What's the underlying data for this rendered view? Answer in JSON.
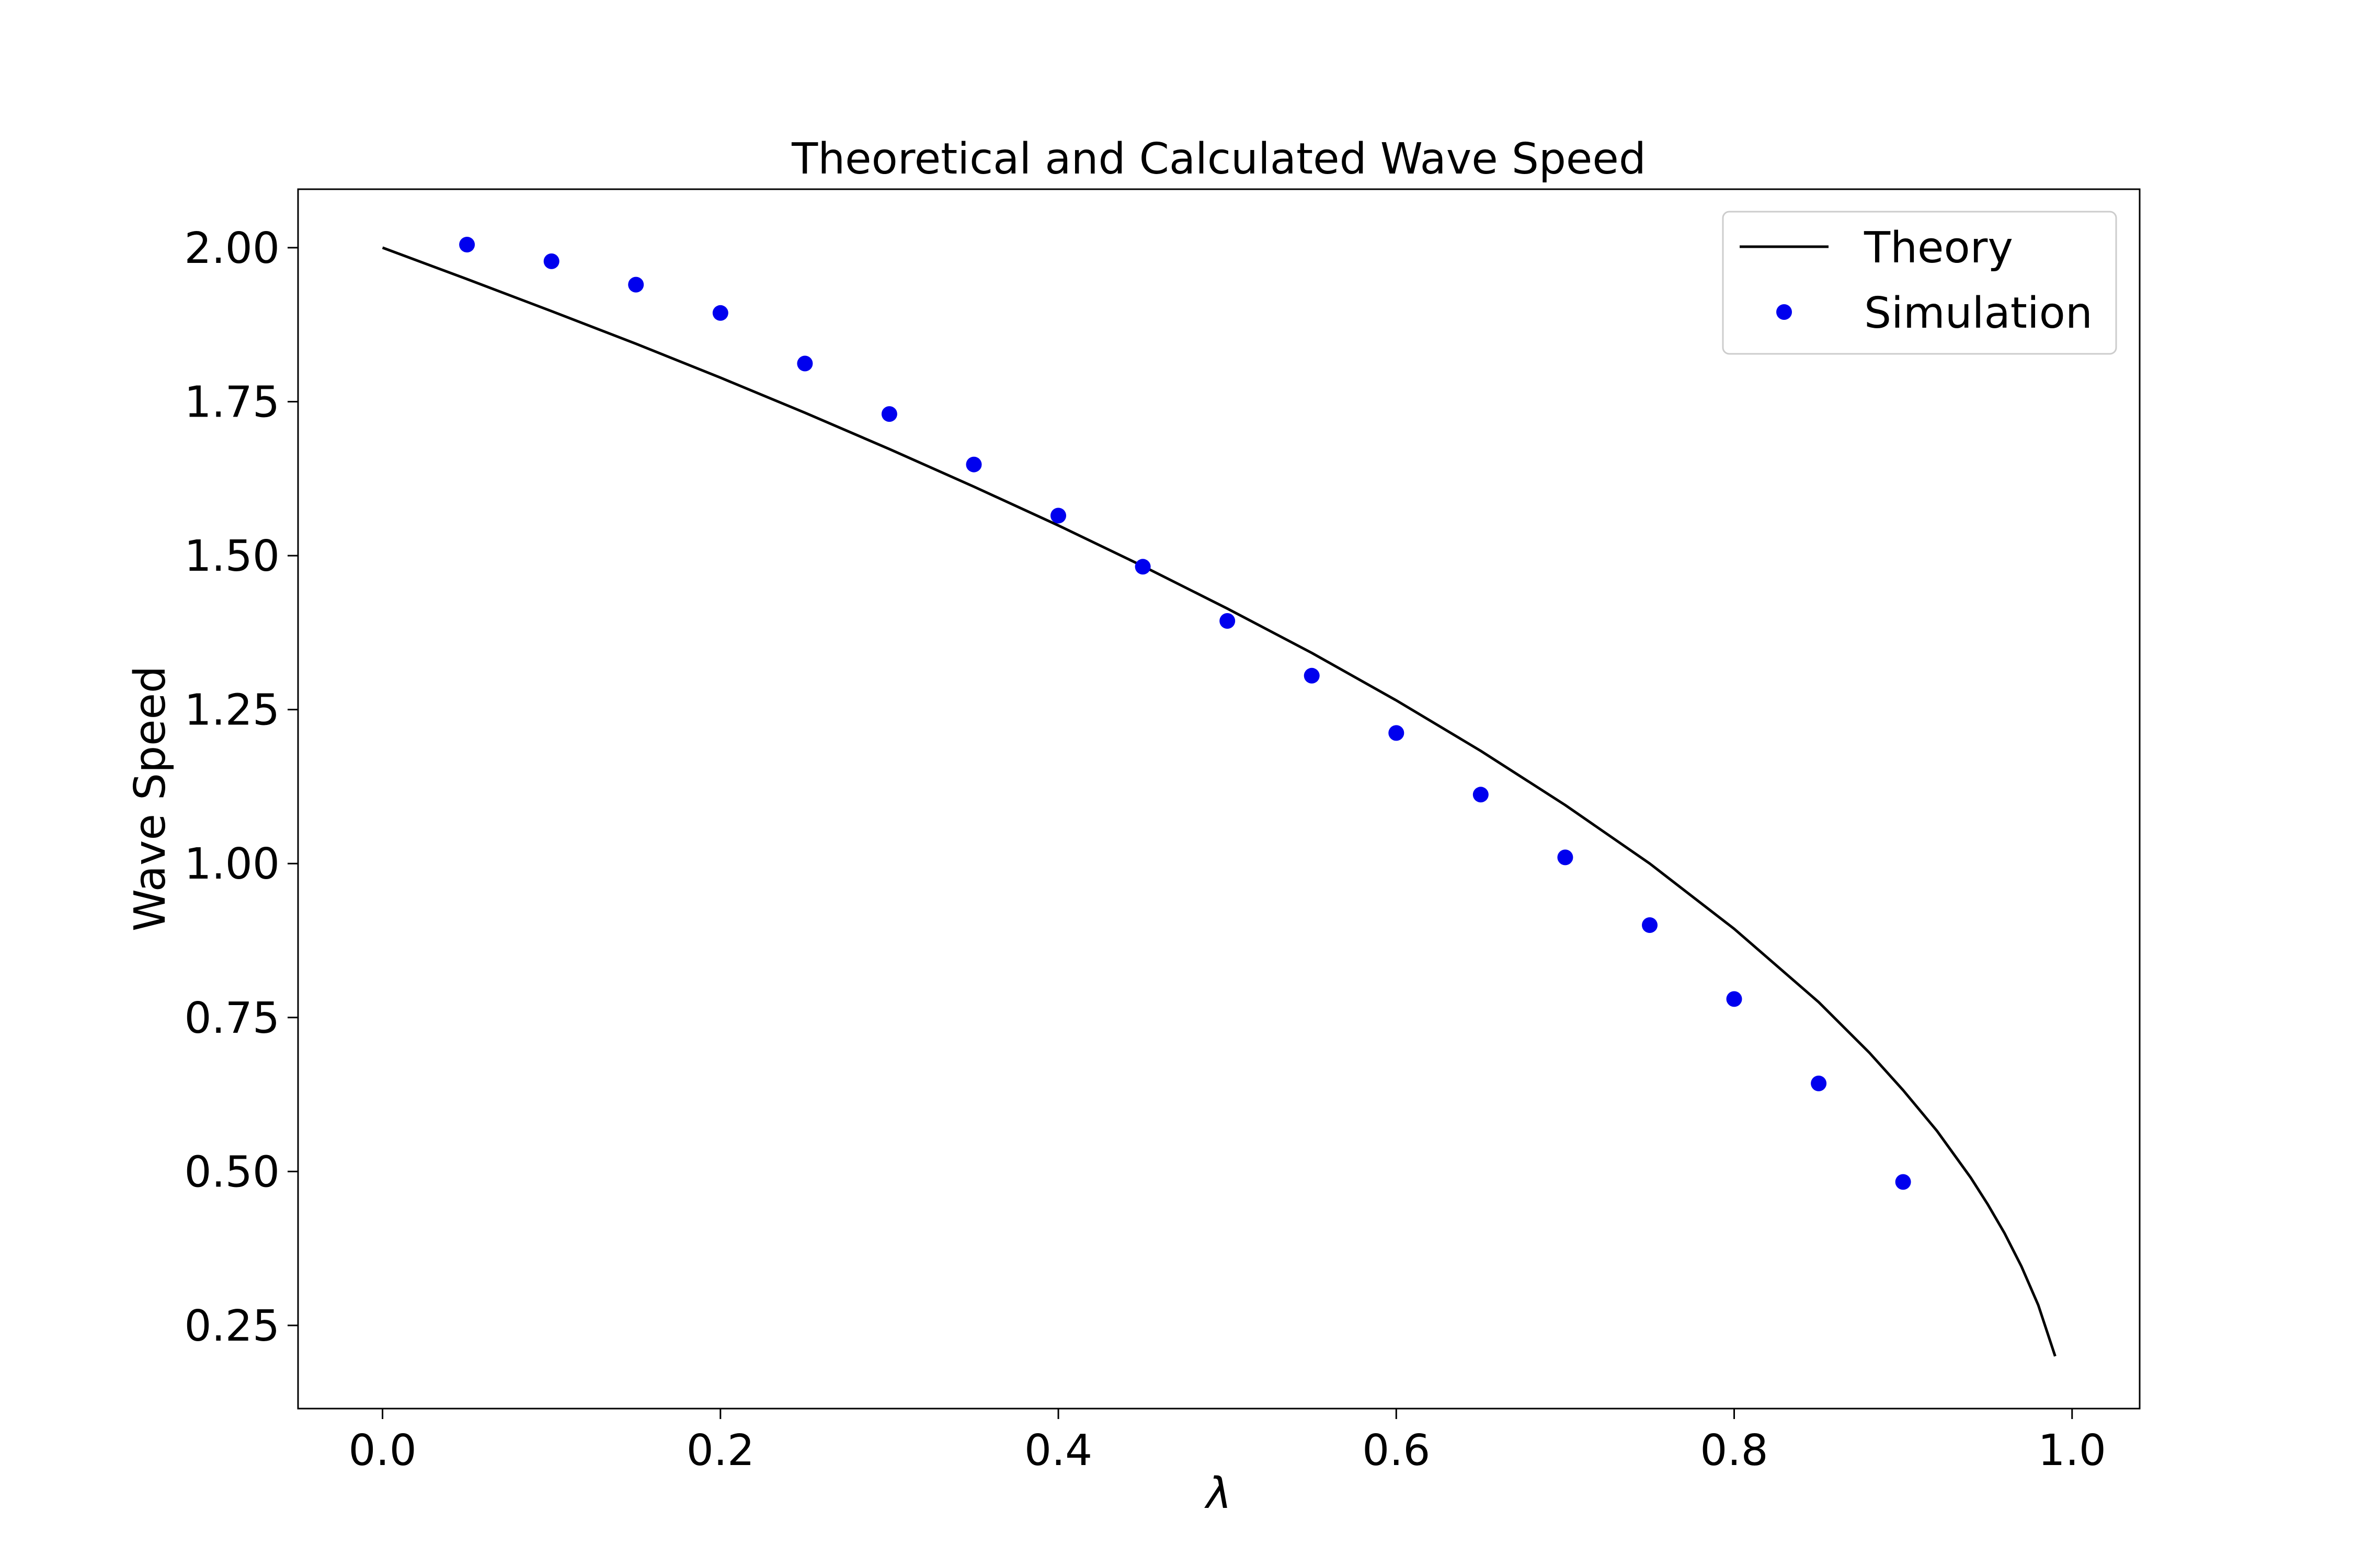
{
  "chart_data": {
    "type": "line",
    "title": "Theoretical and Calculated Wave Speed",
    "xlabel": "λ",
    "ylabel": "Wave Speed",
    "xlim": [
      -0.05,
      1.04
    ],
    "ylim": [
      0.115,
      2.095
    ],
    "xticks": [
      0.0,
      0.2,
      0.4,
      0.6,
      0.8,
      1.0
    ],
    "xtick_labels": [
      "0.0",
      "0.2",
      "0.4",
      "0.6",
      "0.8",
      "1.0"
    ],
    "yticks": [
      0.25,
      0.5,
      0.75,
      1.0,
      1.25,
      1.5,
      1.75,
      2.0
    ],
    "ytick_labels": [
      "0.25",
      "0.50",
      "0.75",
      "1.00",
      "1.25",
      "1.50",
      "1.75",
      "2.00"
    ],
    "grid": false,
    "legend_position": "top-right",
    "series": [
      {
        "name": "Theory",
        "style": "line",
        "color": "#000000",
        "x": [
          0.0,
          0.05,
          0.1,
          0.15,
          0.2,
          0.25,
          0.3,
          0.35,
          0.4,
          0.45,
          0.5,
          0.55,
          0.6,
          0.65,
          0.7,
          0.75,
          0.8,
          0.85,
          0.88,
          0.9,
          0.92,
          0.94,
          0.95,
          0.96,
          0.97,
          0.98,
          0.99
        ],
        "y": [
          2.0,
          1.949,
          1.897,
          1.844,
          1.789,
          1.732,
          1.673,
          1.612,
          1.549,
          1.483,
          1.414,
          1.342,
          1.265,
          1.183,
          1.095,
          1.0,
          0.894,
          0.775,
          0.693,
          0.632,
          0.566,
          0.49,
          0.447,
          0.4,
          0.346,
          0.283,
          0.2
        ]
      },
      {
        "name": "Simulation",
        "style": "markers",
        "color": "#0000ee",
        "x": [
          0.05,
          0.1,
          0.15,
          0.2,
          0.25,
          0.3,
          0.35,
          0.4,
          0.45,
          0.5,
          0.55,
          0.6,
          0.65,
          0.7,
          0.75,
          0.8,
          0.85,
          0.9
        ],
        "y": [
          2.005,
          1.978,
          1.94,
          1.894,
          1.812,
          1.73,
          1.648,
          1.565,
          1.482,
          1.394,
          1.305,
          1.212,
          1.112,
          1.01,
          0.9,
          0.78,
          0.643,
          0.483
        ]
      }
    ]
  }
}
